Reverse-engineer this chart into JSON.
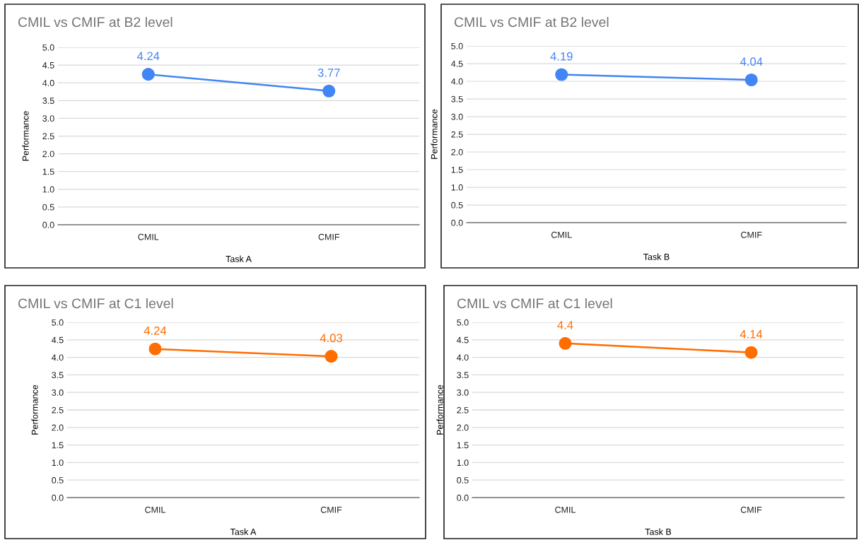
{
  "chart_data": [
    {
      "type": "line",
      "title": "CMIL vs CMIF at B2 level",
      "xlabel": "Task A",
      "ylabel": "Performance",
      "categories": [
        "CMIL",
        "CMIF"
      ],
      "series": [
        {
          "color": "#4285f4",
          "values": [
            4.24,
            3.77
          ]
        }
      ],
      "ylim": [
        0,
        5
      ],
      "yticks": [
        {
          "value": 0,
          "label": "0.0"
        },
        {
          "value": 0.5,
          "label": "0.5"
        },
        {
          "value": 1,
          "label": "1.0"
        },
        {
          "value": 1.5,
          "label": "1.5"
        },
        {
          "value": 2,
          "label": "2.0"
        },
        {
          "value": 2.5,
          "label": "2.5"
        },
        {
          "value": 3,
          "label": "3.0"
        },
        {
          "value": 3.5,
          "label": "3.5"
        },
        {
          "value": 4,
          "label": "4.0"
        },
        {
          "value": 4.5,
          "label": "4.5"
        },
        {
          "value": 5,
          "label": "5.0"
        }
      ],
      "grid": "y",
      "marker": "circle",
      "line_style": "solid",
      "data_labels": true
    },
    {
      "type": "line",
      "title": "CMIL vs CMIF at B2 level",
      "xlabel": "Task B",
      "ylabel": "Performance",
      "categories": [
        "CMIL",
        "CMIF"
      ],
      "series": [
        {
          "color": "#4285f4",
          "values": [
            4.19,
            4.04
          ]
        }
      ],
      "ylim": [
        0,
        5
      ],
      "yticks": [
        {
          "value": 0,
          "label": "0.0"
        },
        {
          "value": 0.5,
          "label": "0.5"
        },
        {
          "value": 1,
          "label": "1.0"
        },
        {
          "value": 1.5,
          "label": "1.5"
        },
        {
          "value": 2,
          "label": "2.0"
        },
        {
          "value": 2.5,
          "label": "2.5"
        },
        {
          "value": 3,
          "label": "3.0"
        },
        {
          "value": 3.5,
          "label": "3.5"
        },
        {
          "value": 4,
          "label": "4.0"
        },
        {
          "value": 4.5,
          "label": "4.5"
        },
        {
          "value": 5,
          "label": "5.0"
        }
      ],
      "grid": "y",
      "marker": "circle",
      "line_style": "solid",
      "data_labels": true
    },
    {
      "type": "line",
      "title": "CMIL vs CMIF at C1 level",
      "xlabel": "Task A",
      "ylabel": "Performance",
      "categories": [
        "CMIL",
        "CMIF"
      ],
      "series": [
        {
          "color": "#ff6d01",
          "values": [
            4.24,
            4.03
          ]
        }
      ],
      "ylim": [
        0,
        5
      ],
      "yticks": [
        {
          "value": 0,
          "label": "0.0"
        },
        {
          "value": 0.5,
          "label": "0.5"
        },
        {
          "value": 1,
          "label": "1.0"
        },
        {
          "value": 1.5,
          "label": "1.5"
        },
        {
          "value": 2,
          "label": "2.0"
        },
        {
          "value": 2.5,
          "label": "2.5"
        },
        {
          "value": 3,
          "label": "3.0"
        },
        {
          "value": 3.5,
          "label": "3.5"
        },
        {
          "value": 4,
          "label": "4.0"
        },
        {
          "value": 4.5,
          "label": "4.5"
        },
        {
          "value": 5,
          "label": "5.0"
        }
      ],
      "grid": "y",
      "marker": "circle",
      "line_style": "solid",
      "data_labels": true
    },
    {
      "type": "line",
      "title": "CMIL vs CMIF at C1 level",
      "xlabel": "Task B",
      "ylabel": "Performance",
      "categories": [
        "CMIL",
        "CMIF"
      ],
      "series": [
        {
          "color": "#ff6d01",
          "values": [
            4.4,
            4.14
          ]
        }
      ],
      "ylim": [
        0,
        5
      ],
      "yticks": [
        {
          "value": 0,
          "label": "0.0"
        },
        {
          "value": 0.5,
          "label": "0.5"
        },
        {
          "value": 1,
          "label": "1.0"
        },
        {
          "value": 1.5,
          "label": "1.5"
        },
        {
          "value": 2,
          "label": "2.0"
        },
        {
          "value": 2.5,
          "label": "2.5"
        },
        {
          "value": 3,
          "label": "3.0"
        },
        {
          "value": 3.5,
          "label": "3.5"
        },
        {
          "value": 4,
          "label": "4.0"
        },
        {
          "value": 4.5,
          "label": "4.5"
        },
        {
          "value": 5,
          "label": "5.0"
        }
      ],
      "grid": "y",
      "marker": "circle",
      "line_style": "solid",
      "data_labels": true
    }
  ]
}
